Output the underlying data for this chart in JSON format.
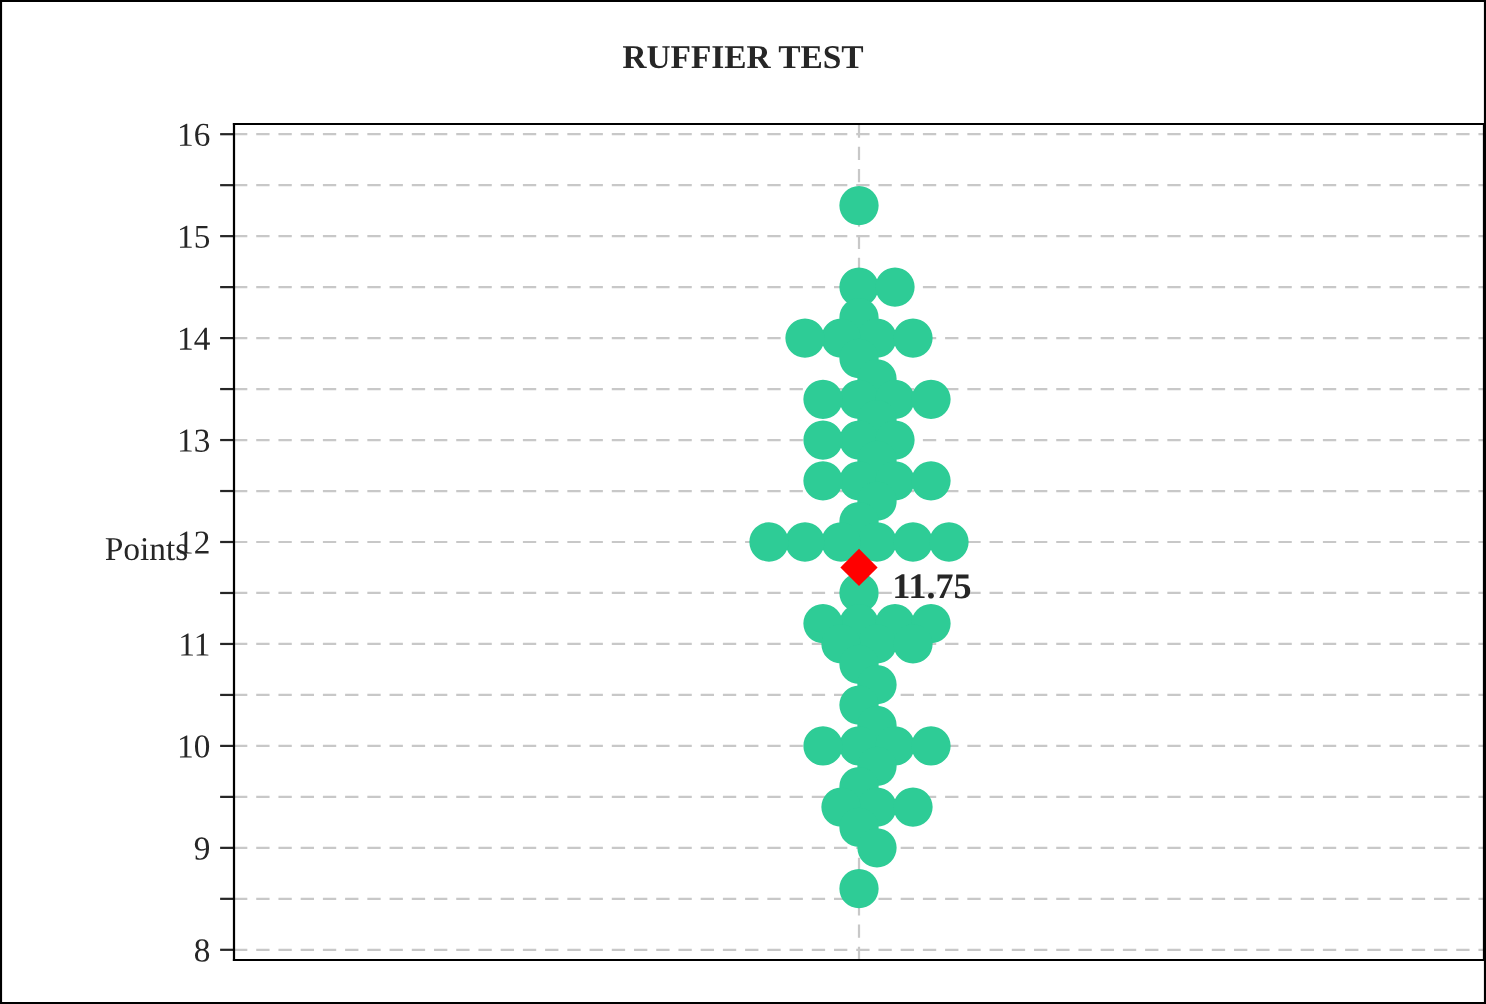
{
  "chart_data": {
    "type": "scatter",
    "title": "RUFFIER TEST",
    "ylabel": "Points",
    "categories": [
      null
    ],
    "series": [
      {
        "type": "scatter",
        "color": "#2ecc96",
        "marker": "circle",
        "x": [
          null,
          null,
          null,
          null,
          null,
          null,
          null,
          null,
          null,
          null,
          null,
          null,
          null,
          null,
          null,
          null,
          null,
          null,
          null,
          null,
          null,
          null,
          null,
          null,
          null,
          null,
          null,
          null,
          null,
          null,
          null,
          null,
          null,
          null,
          null,
          null,
          null,
          null,
          null,
          null,
          null,
          null,
          null,
          null,
          null,
          null,
          null,
          null,
          null,
          null,
          null,
          null,
          null,
          null,
          null
        ],
        "values": [
          15.3,
          14.5,
          14.5,
          14.2,
          14.0,
          14.0,
          14.0,
          14.0,
          13.8,
          13.6,
          13.4,
          13.4,
          13.4,
          13.4,
          13.2,
          13.0,
          13.0,
          13.0,
          12.8,
          12.6,
          12.6,
          12.6,
          12.6,
          12.4,
          12.2,
          12.0,
          12.0,
          12.0,
          12.0,
          12.0,
          12.0,
          11.5,
          11.2,
          11.2,
          11.2,
          11.2,
          11.0,
          11.0,
          11.0,
          10.8,
          10.6,
          10.4,
          10.2,
          10.0,
          10.0,
          10.0,
          10.0,
          9.8,
          9.6,
          9.4,
          9.4,
          9.4,
          9.2,
          9.0,
          8.6
        ]
      },
      {
        "type": "scatter",
        "color": "#ff0000",
        "marker": "diamond",
        "x": [
          null
        ],
        "values": [
          11.75
        ],
        "value_labels": [
          "11.75"
        ]
      }
    ],
    "ylim": [
      7.9,
      16.1
    ],
    "yticks": [
      8,
      {
        "value": 8.5,
        "label": null
      },
      9,
      {
        "value": 9.5,
        "label": null
      },
      10,
      {
        "value": 10.5,
        "label": null
      },
      11,
      {
        "value": 11.5,
        "label": null
      },
      12,
      {
        "value": 12.5,
        "label": null
      },
      13,
      {
        "value": 13.5,
        "label": null
      },
      14,
      {
        "value": 14.5,
        "label": null
      },
      15,
      {
        "value": 15.5,
        "label": null
      },
      16
    ],
    "grid": true,
    "legend": false
  }
}
